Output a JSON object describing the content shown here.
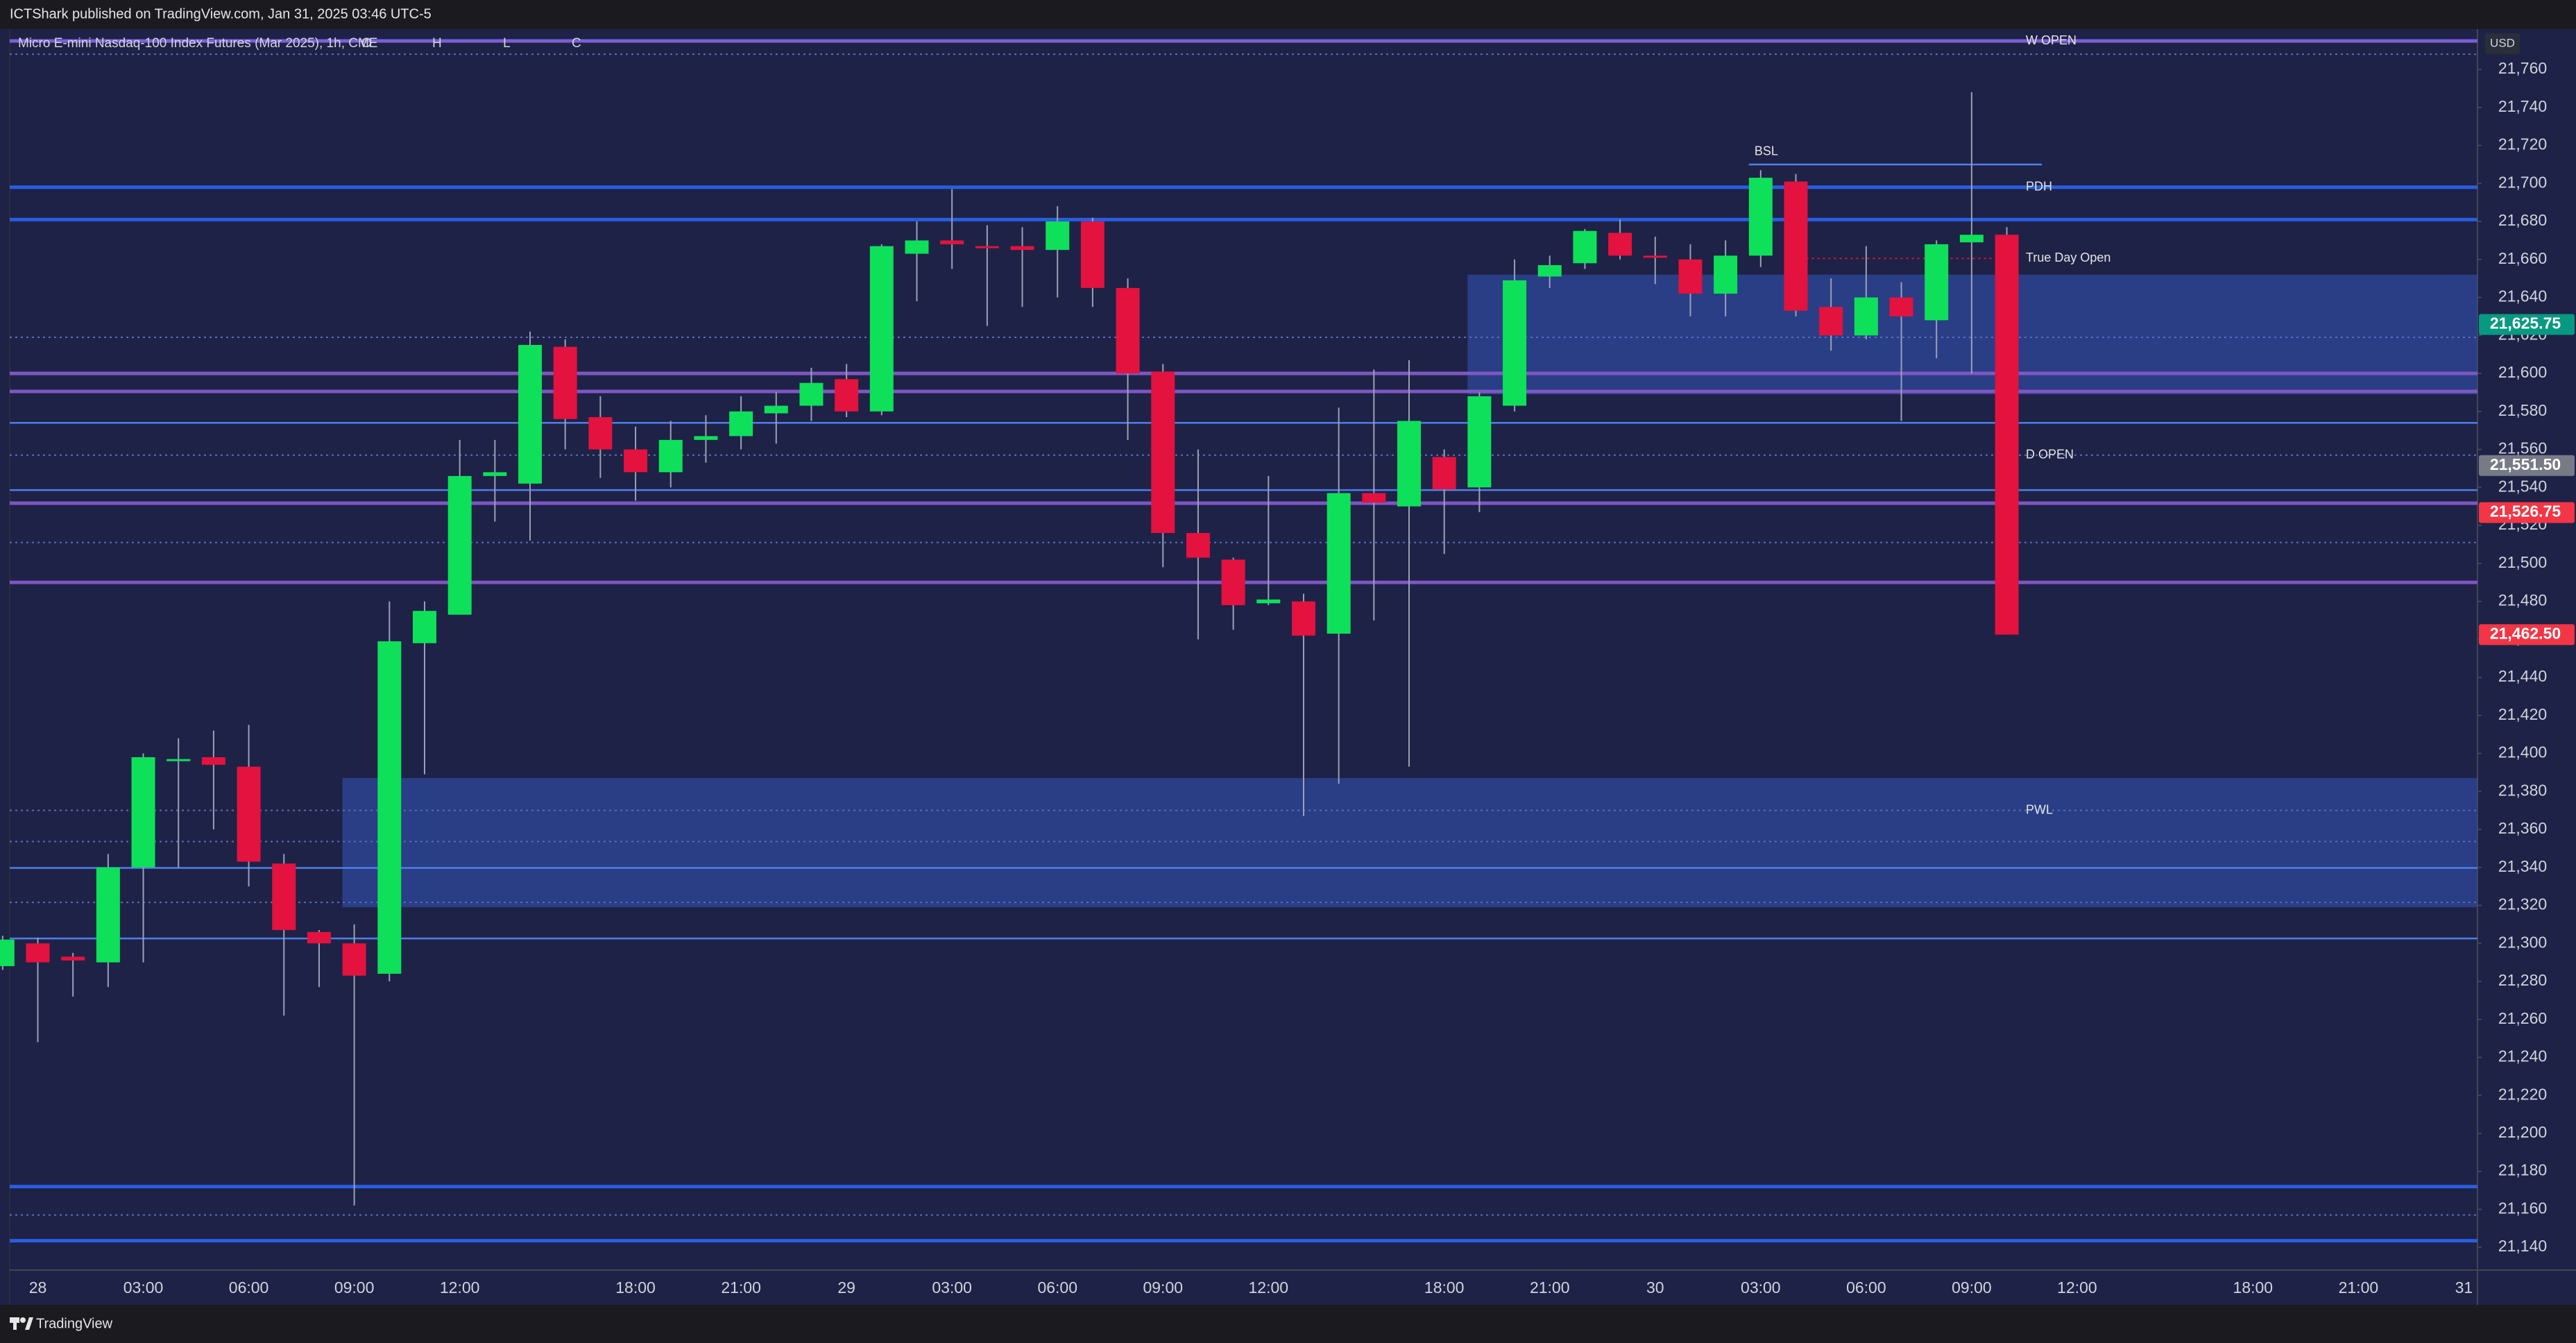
{
  "header": {
    "publisher": "ICTShark published on TradingView.com, Jan 31, 2025 03:46 UTC-5",
    "brand": "TradingView"
  },
  "chart_data": {
    "type": "candlestick",
    "title": "Micro E-mini Nasdaq-100 Index Futures (Mar 2025), 1h, CME",
    "ohlc_letters": [
      "O",
      "H",
      "L",
      "C"
    ],
    "currency": "USD",
    "up_color": "#0ee05a",
    "down_color": "#e3123e",
    "categories": [
      null,
      "28",
      null,
      null,
      "03:00",
      null,
      null,
      "06:00",
      null,
      null,
      "09:00",
      null,
      null,
      "12:00",
      null,
      null,
      null,
      null,
      "18:00",
      null,
      null,
      "21:00",
      null,
      null,
      "29",
      null,
      null,
      "03:00",
      null,
      null,
      "06:00",
      null,
      null,
      "09:00",
      null,
      null,
      "12:00",
      null,
      null,
      null,
      null,
      "18:00",
      null,
      null,
      "21:00",
      null,
      null,
      "30",
      null,
      null,
      "03:00",
      null,
      null,
      "06:00",
      null,
      null,
      "09:00",
      null,
      null,
      "12:00",
      null,
      null,
      null,
      null,
      "18:00",
      null,
      null,
      "21:00",
      null,
      null,
      "31"
    ],
    "open": [
      21288,
      21300,
      21293,
      21290,
      21340,
      21396,
      21398,
      21393,
      21342,
      21306,
      21300,
      21284,
      21458,
      21473,
      21546,
      21542,
      21614,
      21577,
      21560,
      21548,
      21565,
      21567,
      21579,
      21583,
      21597,
      21580,
      21663,
      21670,
      21667,
      21667,
      21665,
      21680,
      21645,
      21601,
      21516,
      21502,
      21479,
      21480,
      21463,
      21537,
      21530,
      21556,
      21540,
      21583,
      21651,
      21658,
      21674,
      21662,
      21660,
      21642,
      21662,
      21701,
      21635,
      21620,
      21640,
      21628,
      21669,
      21673,
      null,
      null,
      null,
      null,
      null,
      null,
      null,
      null,
      null,
      null,
      null,
      null,
      null
    ],
    "high": [
      21304,
      21303,
      21295,
      21347,
      21400,
      21408,
      21412,
      21415,
      21347,
      21307,
      21310,
      21480,
      21480,
      21565,
      21565,
      21622,
      21618,
      21588,
      21572,
      21575,
      21578,
      21588,
      21590,
      21603,
      21605,
      21668,
      21680,
      21697,
      21678,
      21677,
      21688,
      21682,
      21650,
      21605,
      21560,
      21503,
      21546,
      21484,
      21582,
      21602,
      21607,
      21560,
      21590,
      21660,
      21662,
      21676,
      21681,
      21672,
      21668,
      21670,
      21707,
      21705,
      21650,
      21667,
      21648,
      21670,
      21748,
      21677,
      null,
      null,
      null,
      null,
      null,
      null,
      null,
      null,
      null,
      null,
      null,
      null,
      null
    ],
    "low": [
      21286,
      21248,
      21272,
      21277,
      21290,
      21340,
      21360,
      21330,
      21262,
      21277,
      21162,
      21280,
      21389,
      21473,
      21522,
      21512,
      21560,
      21545,
      21533,
      21540,
      21553,
      21560,
      21563,
      21575,
      21577,
      21578,
      21638,
      21655,
      21625,
      21635,
      21640,
      21635,
      21565,
      21498,
      21460,
      21465,
      21478,
      21367,
      21384,
      21470,
      21393,
      21505,
      21527,
      21580,
      21645,
      21655,
      21660,
      21647,
      21630,
      21630,
      21656,
      21630,
      21612,
      21618,
      21575,
      21608,
      21600,
      21462.5,
      null,
      null,
      null,
      null,
      null,
      null,
      null,
      null,
      null,
      null,
      null,
      null,
      null
    ],
    "close": [
      21302,
      21290,
      21291,
      21340,
      21398,
      21397,
      21394,
      21343,
      21307,
      21300,
      21283,
      21459,
      21475,
      21546,
      21548,
      21615,
      21576,
      21560,
      21548,
      21565,
      21567,
      21580,
      21583,
      21595,
      21580,
      21667,
      21670,
      21668,
      21666,
      21665,
      21680,
      21645,
      21600,
      21516,
      21503,
      21478,
      21481,
      21462,
      21537,
      21532,
      21575,
      21539,
      21588,
      21649,
      21657,
      21675,
      21662,
      21661,
      21642,
      21662,
      21703,
      21633,
      21620,
      21640,
      21630,
      21668,
      21673,
      21462.5,
      null,
      null,
      null,
      null,
      null,
      null,
      null,
      null,
      null,
      null,
      null,
      null,
      null
    ],
    "ylim": [
      21128,
      21781
    ],
    "yticks": [
      {
        "value": 21140,
        "label": "21,140"
      },
      {
        "value": 21160,
        "label": "21,160"
      },
      {
        "value": 21180,
        "label": "21,180"
      },
      {
        "value": 21200,
        "label": "21,200"
      },
      {
        "value": 21220,
        "label": "21,220"
      },
      {
        "value": 21240,
        "label": "21,240"
      },
      {
        "value": 21260,
        "label": "21,260"
      },
      {
        "value": 21280,
        "label": "21,280"
      },
      {
        "value": 21300,
        "label": "21,300"
      },
      {
        "value": 21320,
        "label": "21,320"
      },
      {
        "value": 21340,
        "label": "21,340"
      },
      {
        "value": 21360,
        "label": "21,360"
      },
      {
        "value": 21380,
        "label": "21,380"
      },
      {
        "value": 21400,
        "label": "21,400"
      },
      {
        "value": 21420,
        "label": "21,420"
      },
      {
        "value": 21440,
        "label": "21,440"
      },
      {
        "value": 21460,
        "label": "21,460"
      },
      {
        "value": 21480,
        "label": "21,480"
      },
      {
        "value": 21500,
        "label": "21,500"
      },
      {
        "value": 21520,
        "label": "21,520"
      },
      {
        "value": 21540,
        "label": "21,540"
      },
      {
        "value": 21560,
        "label": "21,560"
      },
      {
        "value": 21580,
        "label": "21,580"
      },
      {
        "value": 21600,
        "label": "21,600"
      },
      {
        "value": 21620,
        "label": "21,620"
      },
      {
        "value": 21640,
        "label": "21,640"
      },
      {
        "value": 21660,
        "label": "21,660"
      },
      {
        "value": 21680,
        "label": "21,680"
      },
      {
        "value": 21700,
        "label": "21,700"
      },
      {
        "value": 21720,
        "label": "21,720"
      },
      {
        "value": 21740,
        "label": "21,740"
      },
      {
        "value": 21760,
        "label": "21,760"
      }
    ],
    "price_labels": [
      {
        "value": 21625.75,
        "label": "21,625.75",
        "color": "#089981"
      },
      {
        "value": 21551.5,
        "label": "21,551.50",
        "color": "#787b86"
      },
      {
        "value": 21526.75,
        "label": "21,526.75",
        "color": "#f23645"
      },
      {
        "value": 21462.5,
        "label": "21,462.50",
        "color": "#f23645"
      }
    ],
    "zones": [
      {
        "range": [
          21589,
          21652
        ],
        "start": 42,
        "color": "#2f4fa8"
      },
      {
        "range": [
          21319,
          21387
        ],
        "start": 10,
        "color": "#2f4fa8"
      }
    ],
    "levels": [
      {
        "value": 21775,
        "style": "thick",
        "color": "#7b5fd6",
        "label": "W OPEN"
      },
      {
        "value": 21768,
        "style": "dotted",
        "color": "#5c6bc0"
      },
      {
        "value": 21710,
        "style": "thin",
        "color": "#4f7fe8",
        "label": "BSL",
        "start": 50,
        "end": 58,
        "label_position": "above-start"
      },
      {
        "value": 21698,
        "style": "thick",
        "color": "#2a5ee0",
        "label": "PDH"
      },
      {
        "value": 21681,
        "style": "thick",
        "color": "#2a5ee0"
      },
      {
        "value": 21660.5,
        "style": "dotted",
        "color": "#e3123e",
        "label": "True Day Open",
        "start": 51,
        "end": 57
      },
      {
        "value": 21619,
        "style": "dotted",
        "color": "#5c6bc0"
      },
      {
        "value": 21600,
        "style": "thick",
        "color": "#7e57c2"
      },
      {
        "value": 21590.5,
        "style": "thick",
        "color": "#7e57c2"
      },
      {
        "value": 21574,
        "style": "thin",
        "color": "#4f7fe8"
      },
      {
        "value": 21557,
        "style": "dotted",
        "color": "#5c6bc0",
        "label": "D OPEN"
      },
      {
        "value": 21538.6,
        "style": "thin",
        "color": "#4f7fe8"
      },
      {
        "value": 21531.7,
        "style": "thick",
        "color": "#7e57c2"
      },
      {
        "value": 21511,
        "style": "dotted",
        "color": "#5c6bc0"
      },
      {
        "value": 21490,
        "style": "thick",
        "color": "#7e57c2"
      },
      {
        "value": 21370,
        "style": "dotted",
        "color": "#5c6bc0",
        "label": "PWL"
      },
      {
        "value": 21353.6,
        "style": "dotted",
        "color": "#5c6bc0"
      },
      {
        "value": 21339.7,
        "style": "thin",
        "color": "#4f7fe8"
      },
      {
        "value": 21321.6,
        "style": "dotted",
        "color": "#5c6bc0"
      },
      {
        "value": 21302.6,
        "style": "thin",
        "color": "#4f7fe8"
      },
      {
        "value": 21172,
        "style": "thick",
        "color": "#2a5ee0"
      },
      {
        "value": 21157,
        "style": "dotted",
        "color": "#5c6bc0"
      },
      {
        "value": 21143.5,
        "style": "thick",
        "color": "#2a5ee0"
      }
    ]
  }
}
